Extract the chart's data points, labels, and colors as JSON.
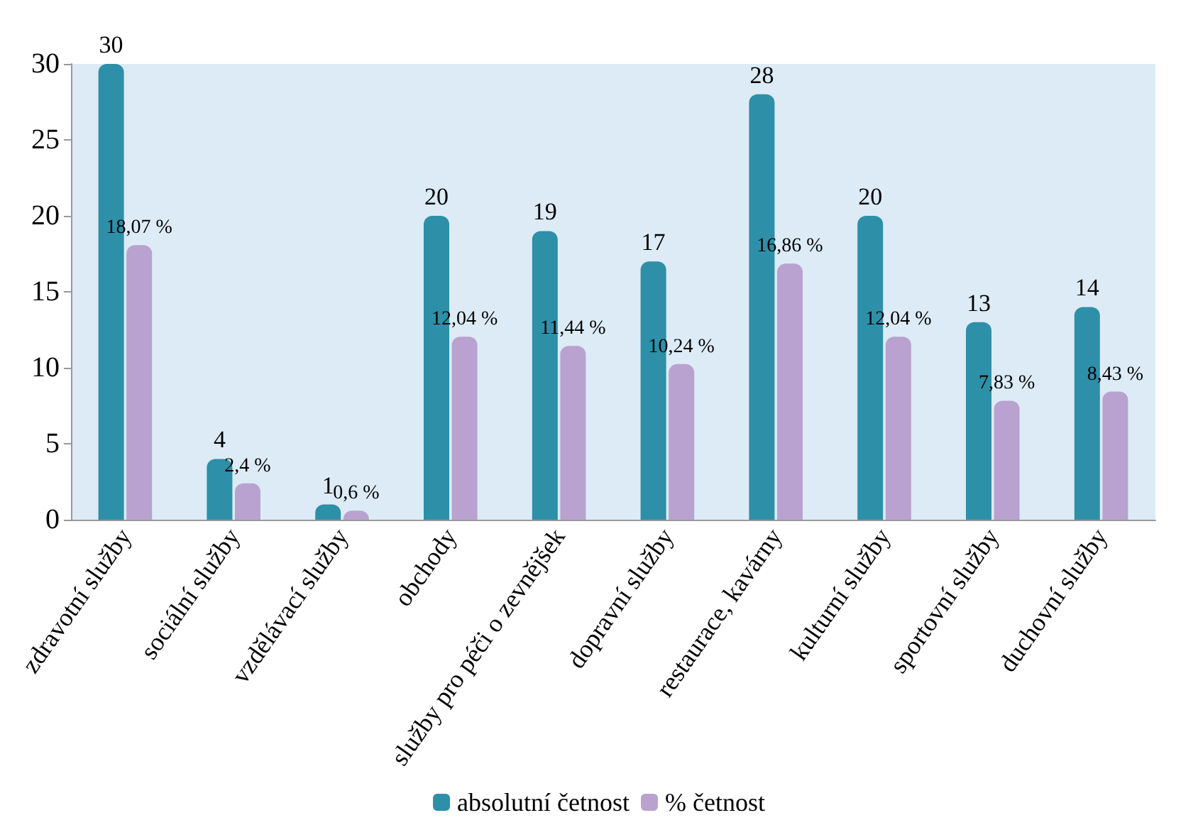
{
  "chart_data": {
    "type": "bar",
    "categories": [
      "zdravotní služby",
      "sociální služby",
      "vzdělávací služby",
      "obchody",
      "služby pro péči o zevnějšek",
      "dopravní služby",
      "restaurace, kavárny",
      "kulturní služby",
      "sportovní služby",
      "duchovní služby"
    ],
    "series": [
      {
        "name": "absolutní četnost",
        "color": "#2e8fa8",
        "values": [
          30,
          4,
          1,
          20,
          19,
          17,
          28,
          20,
          13,
          14
        ],
        "value_labels": [
          "30",
          "4",
          "1",
          "20",
          "19",
          "17",
          "28",
          "20",
          "13",
          "14"
        ]
      },
      {
        "name": "% četnost",
        "color": "#b9a2cf",
        "values": [
          18.07,
          2.4,
          0.6,
          12.04,
          11.44,
          10.24,
          16.86,
          12.04,
          7.83,
          8.43
        ],
        "value_labels": [
          "18,07 %",
          "2,4 %",
          "0,6 %",
          "12,04 %",
          "11,44 %",
          "10,24 %",
          "16,86 %",
          "12,04 %",
          "7,83 %",
          "8,43 %"
        ]
      }
    ],
    "ylim": [
      0,
      30
    ],
    "yticks": [
      0,
      5,
      10,
      15,
      20,
      25,
      30
    ],
    "grid": false,
    "legend": "bottom"
  }
}
